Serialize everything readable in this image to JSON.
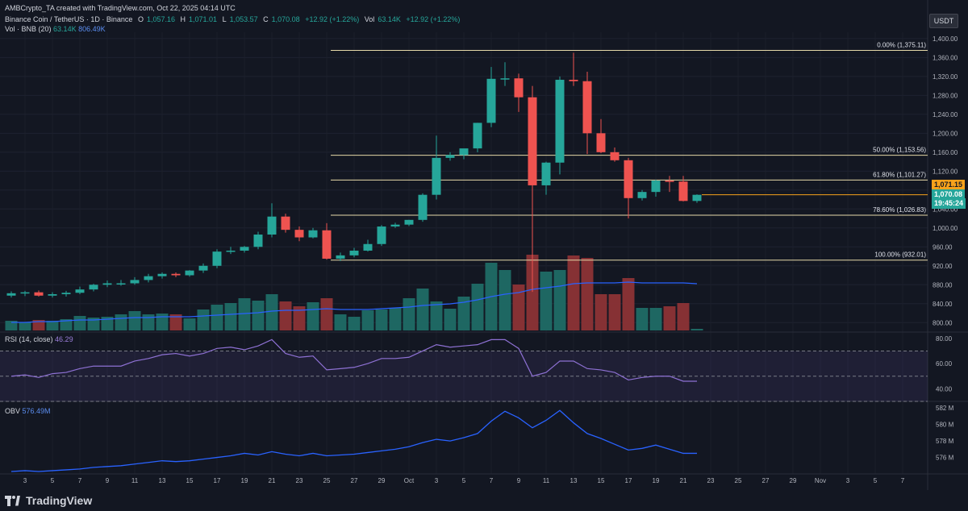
{
  "header": {
    "credit": "AMBCrypto_TA created with TradingView.com, Oct 22, 2025 04:14 UTC",
    "pair": "Binance Coin / TetherUS · 1D · Binance",
    "ohlc": {
      "o_label": "O",
      "o_value": "1,057.16",
      "h_label": "H",
      "h_value": "1,071.01",
      "l_label": "L",
      "l_value": "1,053.57",
      "c_label": "C",
      "c_value": "1,070.08",
      "change": "+12.92 (+1.22%)",
      "vol_label": "Vol",
      "vol_value": "63.14K",
      "vol_change": "+12.92 (+1.22%)"
    },
    "vol_indicator": {
      "label": "Vol · BNB (20)",
      "v1": "63.14K",
      "v2": "806.49K"
    }
  },
  "currency_button": "USDT",
  "price_axis": {
    "ticks": [
      "1,400.00",
      "1,360.00",
      "1,320.00",
      "1,280.00",
      "1,240.00",
      "1,200.00",
      "1,160.00",
      "1,120.00",
      "1,080.00",
      "1,040.00",
      "1,000.00",
      "960.00",
      "920.00",
      "880.00",
      "840.00",
      "800.00"
    ],
    "last_high_label": "1,071.15",
    "current_price": "1,070.08",
    "countdown": "19:45:24"
  },
  "fib_levels": [
    {
      "label": "0.00% (1,375.11)",
      "price": 1375.11
    },
    {
      "label": "50.00% (1,153.56)",
      "price": 1153.56
    },
    {
      "label": "61.80% (1,101.27)",
      "price": 1101.27
    },
    {
      "label": "78.60% (1,026.83)",
      "price": 1026.83
    },
    {
      "label": "100.00% (932.01)",
      "price": 932.01
    }
  ],
  "rsi": {
    "label": "RSI (14, close)",
    "value": "46.29",
    "ticks": [
      "80.00",
      "60.00",
      "40.00"
    ]
  },
  "obv": {
    "label": "OBV",
    "value": "576.49M",
    "ticks": [
      "582 M",
      "580 M",
      "578 M",
      "576 M"
    ]
  },
  "x_axis": {
    "labels": [
      "3",
      "5",
      "7",
      "9",
      "11",
      "13",
      "15",
      "17",
      "19",
      "21",
      "23",
      "25",
      "27",
      "29",
      "Oct",
      "3",
      "5",
      "7",
      "9",
      "11",
      "13",
      "15",
      "17",
      "19",
      "21",
      "23",
      "25",
      "27",
      "29",
      "Nov",
      "3",
      "5",
      "7"
    ]
  },
  "brand": "TradingView",
  "colors": {
    "up": "#26a69a",
    "down": "#ef5350",
    "fib": "#e6d9a8",
    "price_line": "#f7a21b",
    "rsi": "#8e71d4",
    "obv": "#2962ff",
    "vol_ma": "#2962ff"
  },
  "chart_data": {
    "type": "candlestick",
    "x": [
      "Sep 2",
      "Sep 3",
      "Sep 4",
      "Sep 5",
      "Sep 6",
      "Sep 7",
      "Sep 8",
      "Sep 9",
      "Sep 10",
      "Sep 11",
      "Sep 12",
      "Sep 13",
      "Sep 14",
      "Sep 15",
      "Sep 16",
      "Sep 17",
      "Sep 18",
      "Sep 19",
      "Sep 20",
      "Sep 21",
      "Sep 22",
      "Sep 23",
      "Sep 24",
      "Sep 25",
      "Sep 26",
      "Sep 27",
      "Sep 28",
      "Sep 29",
      "Sep 30",
      "Oct 1",
      "Oct 2",
      "Oct 3",
      "Oct 4",
      "Oct 5",
      "Oct 6",
      "Oct 7",
      "Oct 8",
      "Oct 9",
      "Oct 10",
      "Oct 11",
      "Oct 12",
      "Oct 13",
      "Oct 14",
      "Oct 15",
      "Oct 16",
      "Oct 17",
      "Oct 18",
      "Oct 19",
      "Oct 20",
      "Oct 21",
      "Oct 22"
    ],
    "open": [
      857,
      862,
      864,
      857,
      860,
      863,
      870,
      880,
      883,
      883,
      890,
      898,
      903,
      900,
      910,
      920,
      950,
      952,
      960,
      986,
      1024,
      996,
      980,
      995,
      935,
      942,
      952,
      966,
      1003,
      1007,
      1017,
      1070,
      1148,
      1154,
      1168,
      1222,
      1315,
      1316,
      1276,
      1090,
      1138,
      1313,
      1310,
      1200,
      1160,
      1143,
      1063,
      1076,
      1100,
      1098,
      1057
    ],
    "high": [
      866,
      867,
      868,
      864,
      867,
      876,
      882,
      889,
      890,
      896,
      903,
      906,
      906,
      911,
      925,
      955,
      960,
      962,
      992,
      1052,
      1030,
      1003,
      1000,
      1010,
      948,
      958,
      975,
      1006,
      1011,
      1017,
      1073,
      1195,
      1160,
      1167,
      1222,
      1340,
      1350,
      1326,
      1300,
      1140,
      1320,
      1370,
      1330,
      1230,
      1170,
      1148,
      1080,
      1102,
      1110,
      1110,
      1071
    ],
    "high2": null,
    "low": [
      853,
      856,
      855,
      853,
      855,
      860,
      866,
      875,
      878,
      880,
      885,
      893,
      896,
      897,
      905,
      915,
      945,
      948,
      955,
      980,
      990,
      972,
      978,
      933,
      930,
      938,
      950,
      962,
      1000,
      1004,
      1013,
      1060,
      1142,
      1145,
      1160,
      1213,
      1300,
      1245,
      865,
      1070,
      1113,
      1300,
      1156,
      1158,
      1140,
      1020,
      1058,
      1066,
      1076,
      1056,
      1053
    ],
    "close": [
      862,
      864,
      857,
      860,
      863,
      870,
      880,
      883,
      883,
      890,
      898,
      903,
      900,
      910,
      920,
      950,
      952,
      960,
      986,
      1024,
      996,
      980,
      995,
      935,
      942,
      952,
      966,
      1003,
      1007,
      1017,
      1070,
      1148,
      1154,
      1168,
      1222,
      1315,
      1316,
      1276,
      1090,
      1138,
      1313,
      1310,
      1200,
      1160,
      1143,
      1063,
      1076,
      1100,
      1098,
      1057,
      1070
    ],
    "volume": [
      12,
      10,
      13,
      12,
      14,
      18,
      16,
      17,
      20,
      24,
      20,
      21,
      20,
      15,
      26,
      32,
      34,
      40,
      37,
      45,
      36,
      30,
      35,
      40,
      20,
      17,
      25,
      26,
      28,
      40,
      52,
      36,
      27,
      42,
      58,
      84,
      75,
      57,
      94,
      73,
      75,
      93,
      90,
      45,
      45,
      65,
      28,
      28,
      30,
      34,
      2
    ],
    "vol_ma": [
      10,
      10,
      11,
      11,
      12,
      13,
      13,
      14,
      15,
      16,
      16,
      17,
      17,
      17,
      18,
      19,
      20,
      21,
      22,
      24,
      25,
      25,
      26,
      27,
      26,
      26,
      26,
      27,
      28,
      29,
      31,
      32,
      33,
      35,
      38,
      42,
      45,
      47,
      51,
      53,
      55,
      58,
      59,
      59,
      59,
      60,
      59,
      59,
      59,
      59,
      58
    ],
    "rsi": [
      50,
      51,
      49,
      52,
      53,
      56,
      58,
      58,
      58,
      62,
      64,
      67,
      68,
      66,
      68,
      72,
      73,
      71,
      74,
      79,
      68,
      65,
      66,
      55,
      56,
      57,
      60,
      64,
      64,
      65,
      70,
      75,
      73,
      74,
      75,
      79,
      79,
      72,
      50,
      53,
      62,
      62,
      56,
      55,
      53,
      47,
      49,
      50,
      50,
      46,
      46
    ],
    "obv": [
      574.3,
      574.4,
      574.3,
      574.4,
      574.5,
      574.6,
      574.8,
      574.9,
      575.0,
      575.2,
      575.4,
      575.6,
      575.5,
      575.6,
      575.8,
      576.0,
      576.2,
      576.5,
      576.3,
      576.7,
      576.4,
      576.2,
      576.5,
      576.2,
      576.3,
      576.4,
      576.6,
      576.8,
      577.0,
      577.3,
      577.8,
      578.2,
      578.0,
      578.4,
      578.9,
      580.4,
      581.6,
      580.8,
      579.6,
      580.5,
      581.7,
      580.2,
      578.9,
      578.3,
      577.6,
      576.9,
      577.1,
      577.5,
      577.0,
      576.5,
      576.5
    ],
    "ylim": [
      780,
      1410
    ],
    "rsi_ylim": [
      30,
      85
    ],
    "obv_ylim": [
      574.2,
      582.6
    ],
    "rsi_levels": [
      70,
      50,
      30
    ]
  }
}
